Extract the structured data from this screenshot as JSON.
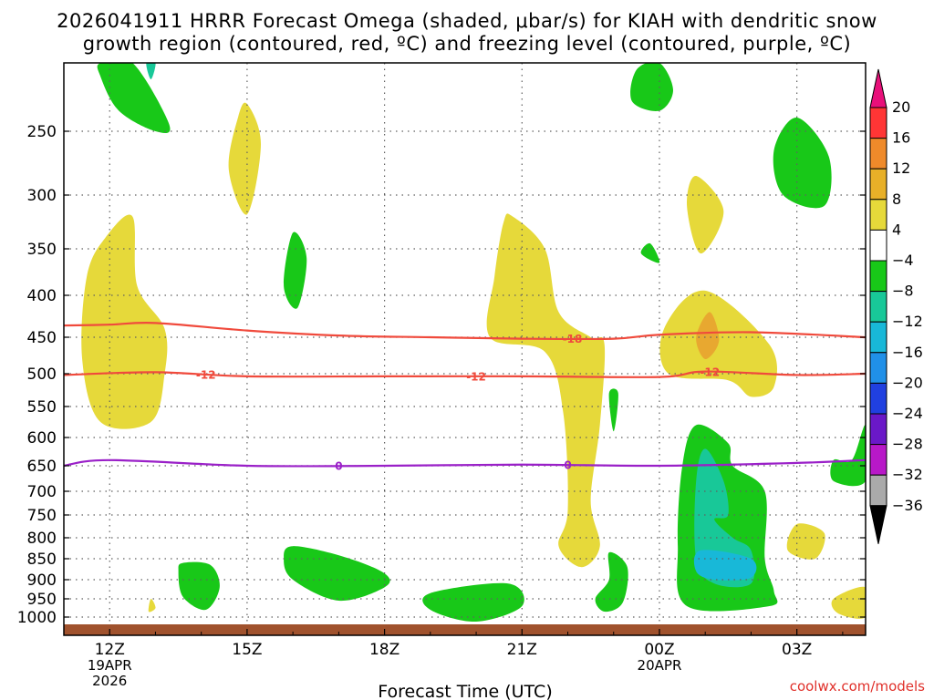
{
  "title": {
    "line1": "2026041911 HRRR Forecast Omega (shaded, μbar/s) for KIAH with dendritic snow",
    "line2": "growth region (contoured, red, ºC) and freezing level (contoured, purple, ºC)"
  },
  "xaxis_label": "Forecast Time (UTC)",
  "credit": "coolwx.com/models",
  "colors": {
    "freezing_line": "#9a20c8",
    "dgz_line": "#f04a3c",
    "ground": "#a0522d",
    "grid": "#606060"
  },
  "chart_data": {
    "type": "heatmap",
    "title": "2026041911 HRRR Forecast Omega for KIAH",
    "x_range_hours": [
      -1.0,
      16.5
    ],
    "x_ticks": [
      {
        "hour": 0,
        "label": "12Z",
        "date1": "19APR",
        "date2": "2026"
      },
      {
        "hour": 3,
        "label": "15Z",
        "date1": "",
        "date2": ""
      },
      {
        "hour": 6,
        "label": "18Z",
        "date1": "",
        "date2": ""
      },
      {
        "hour": 9,
        "label": "21Z",
        "date1": "",
        "date2": ""
      },
      {
        "hour": 12,
        "label": "00Z",
        "date1": "20APR",
        "date2": ""
      },
      {
        "hour": 15,
        "label": "03Z",
        "date1": "",
        "date2": ""
      }
    ],
    "y_range_hpa": [
      1020,
      200
    ],
    "y_ticks": [
      {
        "p": 250,
        "label": "250"
      },
      {
        "p": 300,
        "label": "300"
      },
      {
        "p": 350,
        "label": "350"
      },
      {
        "p": 400,
        "label": "400"
      },
      {
        "p": 450,
        "label": "450"
      },
      {
        "p": 500,
        "label": "500"
      },
      {
        "p": 550,
        "label": "550"
      },
      {
        "p": 600,
        "label": "600"
      },
      {
        "p": 650,
        "label": "650"
      },
      {
        "p": 700,
        "label": "700"
      },
      {
        "p": 750,
        "label": "750"
      },
      {
        "p": 800,
        "label": "800"
      },
      {
        "p": 850,
        "label": "850"
      },
      {
        "p": 900,
        "label": "900"
      },
      {
        "p": 950,
        "label": "950"
      },
      {
        "p": 1000,
        "label": "1000"
      }
    ],
    "colorbar": {
      "levels": [
        {
          "label": "20",
          "color": "#ff3535"
        },
        {
          "label": "16",
          "color": "#ff5a3a"
        },
        {
          "label": "12",
          "color": "#ef8a2a"
        },
        {
          "label": "8",
          "color": "#e8b028"
        },
        {
          "label": "4",
          "color": "#e6d93a"
        },
        {
          "label": "−4",
          "color": "#ffffff"
        },
        {
          "label": "−8",
          "color": "#18c818"
        },
        {
          "label": "−12",
          "color": "#18c898"
        },
        {
          "label": "−16",
          "color": "#18b8d8"
        },
        {
          "label": "−20",
          "color": "#2090e8"
        },
        {
          "label": "−24",
          "color": "#2040e0"
        },
        {
          "label": "−28",
          "color": "#6a18c8"
        },
        {
          "label": "−32",
          "color": "#b818c8"
        },
        {
          "label": "−36",
          "color": "#aaaaaa"
        }
      ],
      "top_color": "#e8107a",
      "bottom_color": "#000000"
    },
    "freezing_level_0C": {
      "label": "0",
      "points": [
        [
          -1.0,
          650
        ],
        [
          0,
          640
        ],
        [
          3,
          650
        ],
        [
          6,
          650
        ],
        [
          9,
          648
        ],
        [
          12,
          650
        ],
        [
          15,
          645
        ],
        [
          16.5,
          640
        ]
      ],
      "label_hours": [
        5.0,
        10.0
      ]
    },
    "dgz_minus12C": {
      "label": "-12",
      "points": [
        [
          -1.0,
          502
        ],
        [
          1,
          498
        ],
        [
          3,
          504
        ],
        [
          6,
          504
        ],
        [
          9,
          504
        ],
        [
          12,
          505
        ],
        [
          13,
          497
        ],
        [
          15,
          502
        ],
        [
          16.5,
          500
        ]
      ],
      "label_hours": [
        2.1,
        8.0,
        13.1
      ]
    },
    "dgz_minus18C": {
      "label": "-18",
      "points": [
        [
          -1.0,
          436
        ],
        [
          0,
          435
        ],
        [
          1,
          433
        ],
        [
          3,
          442
        ],
        [
          5,
          448
        ],
        [
          7,
          450
        ],
        [
          9,
          452
        ],
        [
          11,
          452
        ],
        [
          12,
          447
        ],
        [
          14,
          444
        ],
        [
          16.5,
          450
        ]
      ],
      "label_hours": [
        10.1
      ]
    },
    "omega_regions": [
      {
        "name": "ascent-top-left-green",
        "class": "green",
        "value": -6,
        "points": [
          [
            -0.2,
            200
          ],
          [
            0.5,
            200
          ],
          [
            1.3,
            245
          ],
          [
            1.0,
            250
          ],
          [
            0.2,
            235
          ],
          [
            -0.2,
            210
          ]
        ]
      },
      {
        "name": "ascent-top-left-teal",
        "class": "teal",
        "value": -10,
        "points": [
          [
            0.8,
            200
          ],
          [
            1.0,
            200
          ],
          [
            0.9,
            212
          ]
        ]
      },
      {
        "name": "sink-left-column",
        "class": "yellow",
        "value": 5,
        "points": [
          [
            -0.1,
            340
          ],
          [
            0.5,
            320
          ],
          [
            0.6,
            390
          ],
          [
            1.2,
            440
          ],
          [
            1.2,
            500
          ],
          [
            0.9,
            575
          ],
          [
            -0.2,
            575
          ],
          [
            -0.6,
            480
          ],
          [
            -0.5,
            380
          ]
        ]
      },
      {
        "name": "sink-upper-15z",
        "class": "yellow",
        "value": 5,
        "points": [
          [
            3,
            230
          ],
          [
            3.3,
            260
          ],
          [
            3.0,
            318
          ],
          [
            2.6,
            280
          ],
          [
            2.8,
            240
          ]
        ]
      },
      {
        "name": "ascent-mid-16z",
        "class": "green",
        "value": -6,
        "points": [
          [
            4.0,
            335
          ],
          [
            4.3,
            360
          ],
          [
            4.1,
            415
          ],
          [
            3.8,
            390
          ]
        ]
      },
      {
        "name": "sink-21z-column",
        "class": "yellow",
        "value": 5,
        "points": [
          [
            8.6,
            325
          ],
          [
            8.8,
            320
          ],
          [
            9.5,
            350
          ],
          [
            9.8,
            420
          ],
          [
            10.5,
            450
          ],
          [
            10.8,
            460
          ],
          [
            10.7,
            580
          ],
          [
            10.5,
            720
          ],
          [
            10.7,
            820
          ],
          [
            10.3,
            870
          ],
          [
            9.8,
            820
          ],
          [
            10.0,
            740
          ],
          [
            9.9,
            560
          ],
          [
            9.5,
            470
          ],
          [
            8.3,
            450
          ],
          [
            8.4,
            380
          ]
        ]
      },
      {
        "name": "ascent-small-2230",
        "class": "green",
        "value": -6,
        "points": [
          [
            10.9,
            530
          ],
          [
            11.1,
            530
          ],
          [
            11.0,
            590
          ]
        ]
      },
      {
        "name": "ascent-upper-00z",
        "class": "green",
        "value": -6,
        "points": [
          [
            12.0,
            200
          ],
          [
            12.3,
            220
          ],
          [
            12.0,
            235
          ],
          [
            11.4,
            228
          ],
          [
            11.5,
            205
          ]
        ]
      },
      {
        "name": "ascent-upper-2330",
        "class": "green",
        "value": -6,
        "points": [
          [
            11.8,
            345
          ],
          [
            12.0,
            365
          ],
          [
            11.6,
            355
          ]
        ]
      },
      {
        "name": "sink-upper-01z",
        "class": "yellow",
        "value": 5,
        "points": [
          [
            12.8,
            285
          ],
          [
            13.4,
            315
          ],
          [
            12.9,
            355
          ],
          [
            12.6,
            310
          ]
        ]
      },
      {
        "name": "ascent-upper-03z",
        "class": "green",
        "value": -6,
        "points": [
          [
            15,
            240
          ],
          [
            15.7,
            270
          ],
          [
            15.6,
            310
          ],
          [
            14.7,
            300
          ],
          [
            14.5,
            265
          ]
        ]
      },
      {
        "name": "sink-mid-01z",
        "class": "yellow",
        "value": 5,
        "points": [
          [
            13,
            395
          ],
          [
            14.4,
            460
          ],
          [
            14.5,
            520
          ],
          [
            14.0,
            535
          ],
          [
            13.5,
            510
          ],
          [
            12.2,
            500
          ],
          [
            12.1,
            440
          ]
        ]
      },
      {
        "name": "sink-mid-01z-orange",
        "class": "orange",
        "value": 9,
        "points": [
          [
            13.1,
            420
          ],
          [
            13.3,
            455
          ],
          [
            13.0,
            480
          ],
          [
            12.8,
            450
          ]
        ]
      },
      {
        "name": "ascent-low-01z-green",
        "class": "green",
        "value": -6,
        "points": [
          [
            12.8,
            580
          ],
          [
            13.5,
            610
          ],
          [
            13.6,
            650
          ],
          [
            14.3,
            700
          ],
          [
            14.3,
            850
          ],
          [
            14.5,
            930
          ],
          [
            14.4,
            970
          ],
          [
            12.6,
            970
          ],
          [
            12.4,
            820
          ],
          [
            12.5,
            650
          ]
        ]
      },
      {
        "name": "ascent-low-01z-teal",
        "class": "teal",
        "value": -10,
        "points": [
          [
            13.0,
            620
          ],
          [
            13.4,
            680
          ],
          [
            13.5,
            750
          ],
          [
            13.2,
            760
          ],
          [
            13.6,
            800
          ],
          [
            14.0,
            830
          ],
          [
            14.0,
            910
          ],
          [
            13.2,
            910
          ],
          [
            12.8,
            850
          ],
          [
            12.8,
            680
          ]
        ]
      },
      {
        "name": "ascent-low-01z-cyan",
        "class": "cyan",
        "value": -14,
        "points": [
          [
            12.9,
            830
          ],
          [
            14.0,
            850
          ],
          [
            14.0,
            895
          ],
          [
            13.2,
            900
          ],
          [
            12.8,
            880
          ]
        ]
      },
      {
        "name": "sink-low-03z",
        "class": "yellow",
        "value": 5,
        "points": [
          [
            15.0,
            770
          ],
          [
            15.6,
            790
          ],
          [
            15.4,
            850
          ],
          [
            14.8,
            830
          ]
        ]
      },
      {
        "name": "ascent-right-edge",
        "class": "green",
        "value": -6,
        "points": [
          [
            16.5,
            580
          ],
          [
            16.5,
            680
          ],
          [
            15.8,
            680
          ],
          [
            15.8,
            640
          ],
          [
            16.2,
            640
          ]
        ]
      },
      {
        "name": "sink-low-right",
        "class": "yellow",
        "value": 5,
        "points": [
          [
            16.5,
            920
          ],
          [
            16.5,
            1000
          ],
          [
            15.9,
            990
          ],
          [
            15.8,
            950
          ]
        ]
      },
      {
        "name": "ascent-low-14z",
        "class": "green",
        "value": -6,
        "points": [
          [
            1.6,
            860
          ],
          [
            2.2,
            865
          ],
          [
            2.4,
            920
          ],
          [
            2.1,
            980
          ],
          [
            1.6,
            945
          ],
          [
            1.5,
            880
          ]
        ]
      },
      {
        "name": "sink-tiny-13z",
        "class": "yellow",
        "value": 5,
        "points": [
          [
            0.9,
            950
          ],
          [
            1.0,
            975
          ],
          [
            0.85,
            985
          ]
        ]
      },
      {
        "name": "ascent-low-17z",
        "class": "green",
        "value": -6,
        "points": [
          [
            4.0,
            820
          ],
          [
            5.1,
            845
          ],
          [
            6.0,
            885
          ],
          [
            6.0,
            920
          ],
          [
            5.0,
            955
          ],
          [
            4.0,
            900
          ],
          [
            3.8,
            850
          ]
        ]
      },
      {
        "name": "ascent-low-20z",
        "class": "green",
        "value": -6,
        "points": [
          [
            7.0,
            935
          ],
          [
            8.7,
            910
          ],
          [
            9.0,
            970
          ],
          [
            8.0,
            1005
          ],
          [
            7.0,
            980
          ]
        ]
      },
      {
        "name": "ascent-low-2330",
        "class": "green",
        "value": -6,
        "points": [
          [
            10.9,
            835
          ],
          [
            11.3,
            870
          ],
          [
            11.2,
            960
          ],
          [
            10.8,
            985
          ],
          [
            10.6,
            950
          ],
          [
            10.9,
            900
          ]
        ]
      }
    ],
    "region_colors": {
      "yellow": "#e6d93a",
      "orange": "#e8a830",
      "green": "#18c818",
      "teal": "#18c898",
      "cyan": "#18b8d8"
    }
  }
}
